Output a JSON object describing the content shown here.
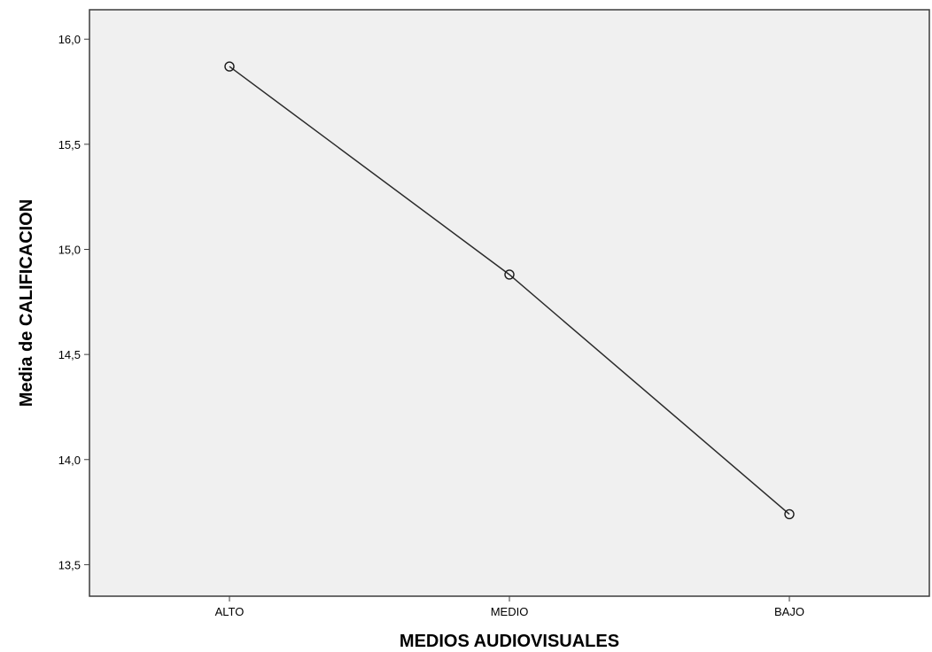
{
  "chart_data": {
    "type": "line",
    "title": "",
    "xlabel": "MEDIOS AUDIOVISUALES",
    "ylabel": "Media de CALIFICACION",
    "categories": [
      "ALTO",
      "MEDIO",
      "BAJO"
    ],
    "series": [
      {
        "values": [
          15.87,
          14.88,
          13.74
        ]
      }
    ],
    "ylim": [
      13.35,
      16.14
    ],
    "y_ticks": [
      13.5,
      14.0,
      14.5,
      15.0,
      15.5,
      16.0
    ],
    "y_tick_labels": [
      "13,5",
      "14,0",
      "14,5",
      "15,0",
      "15,5",
      "16,0"
    ],
    "grid": false,
    "legend": "none",
    "colors": {
      "plot_background": "#f0f0f0",
      "frame": "#3c3c3c",
      "line": "#2b2b2b",
      "marker_stroke": "#1a1a1a"
    }
  }
}
